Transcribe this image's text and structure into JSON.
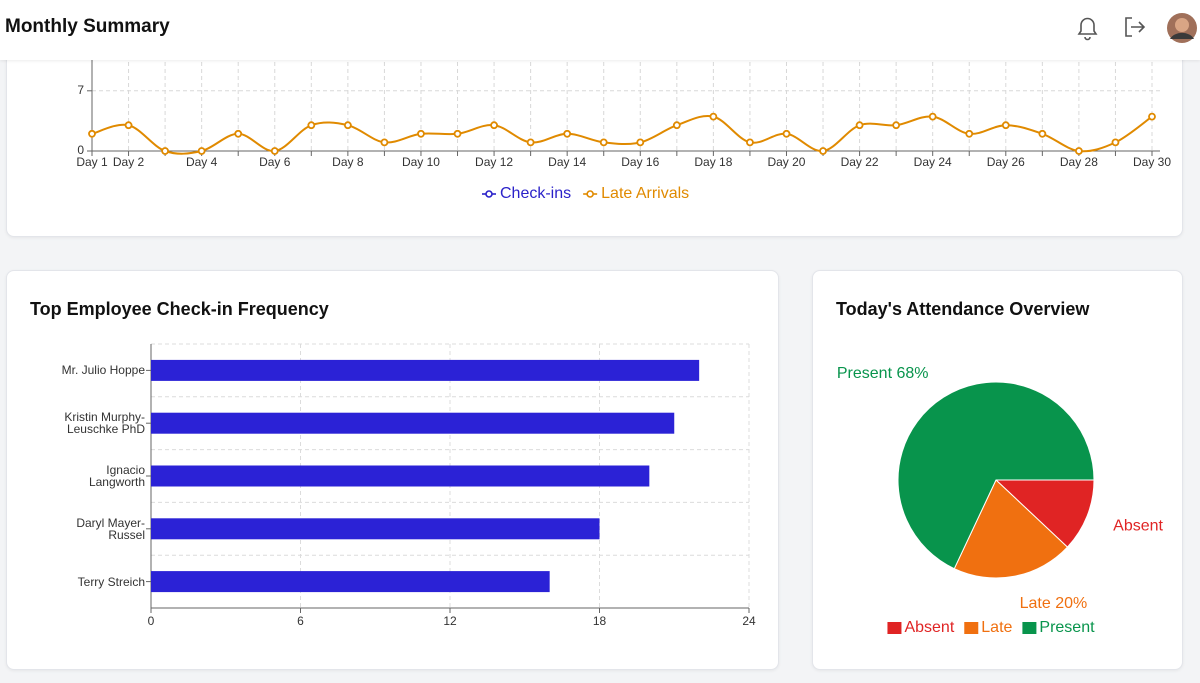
{
  "header": {
    "title": "Monthly Summary"
  },
  "chart_data": [
    {
      "type": "line",
      "categories": [
        "Day 1",
        "Day 2",
        null,
        "Day 4",
        null,
        "Day 6",
        null,
        "Day 8",
        null,
        "Day 10",
        null,
        "Day 12",
        null,
        "Day 14",
        null,
        "Day 16",
        null,
        "Day 18",
        null,
        "Day 20",
        null,
        "Day 22",
        null,
        "Day 24",
        null,
        "Day 26",
        null,
        "Day 28",
        null,
        "Day 30"
      ],
      "series": [
        {
          "name": "Check-ins",
          "color": "#2b22c9",
          "values": [
            null,
            null,
            null,
            null,
            null,
            null,
            null,
            null,
            null,
            null,
            null,
            null,
            null,
            null,
            null,
            null,
            null,
            null,
            null,
            null,
            null,
            null,
            null,
            null,
            null,
            null,
            null,
            null,
            null,
            null
          ]
        },
        {
          "name": "Late Arrivals",
          "color": "#e08a00",
          "values": [
            2,
            3,
            0,
            0,
            2,
            0,
            3,
            3,
            1,
            2,
            2,
            3,
            1,
            2,
            1,
            1,
            3,
            4,
            1,
            2,
            0,
            3,
            3,
            4,
            2,
            3,
            2,
            0,
            1,
            4
          ]
        }
      ],
      "ylim": [
        0,
        10
      ],
      "yticks": [
        0,
        7
      ],
      "grid": true,
      "legend": "bottom"
    },
    {
      "type": "bar",
      "orientation": "horizontal",
      "title": "Top Employee Check-in Frequency",
      "categories": [
        "Mr. Julio Hoppe",
        "Kristin Murphy-Leuschke PhD",
        "Ignacio Langworth",
        "Daryl Mayer-Russel",
        "Terry Streich"
      ],
      "values": [
        22,
        21,
        20,
        18,
        16
      ],
      "color": "#2b22d6",
      "xlim": [
        0,
        24
      ],
      "xticks": [
        0,
        6,
        12,
        18,
        24
      ],
      "grid": true
    },
    {
      "type": "pie",
      "title": "Today's Attendance Overview",
      "categories": [
        "Absent",
        "Late",
        "Present"
      ],
      "values": [
        12,
        20,
        68
      ],
      "value_labels": [
        "Absent",
        "Late 20%",
        "Present 68%"
      ],
      "colors": [
        "#e02424",
        "#f07010",
        "#08944c"
      ],
      "legend": "bottom"
    }
  ]
}
